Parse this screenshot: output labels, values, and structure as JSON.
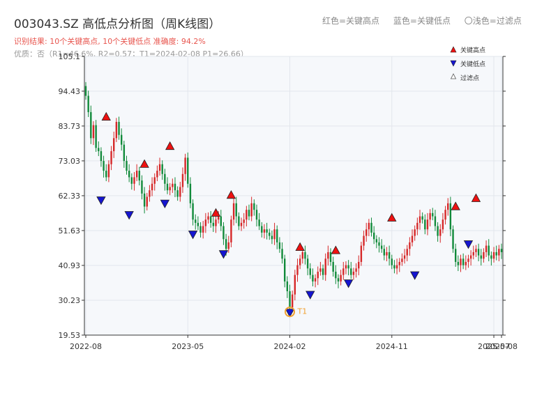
{
  "header": {
    "title": "003043.SZ 高低点分析图（周K线图）",
    "legend_red": "红色=关键高点",
    "legend_blue": "蓝色=关键低点",
    "legend_filtered": "〇浅色=过滤点",
    "summary": "识别结果: 10个关键高点, 10个关键低点  准确度: 94.2%",
    "quality": "优质：否（R1=46.6%, R2=0.57；T1=2024-02-08 P1=26.66）"
  },
  "colors": {
    "up": "#d62728",
    "down": "#118a3a",
    "high_marker": "#ee1111",
    "low_marker": "#1515d0",
    "t1": "#f0a030",
    "grid": "#e2e6ec",
    "plot_bg": "#f6f8fb"
  },
  "chart_data": {
    "type": "candlestick",
    "y_ticks": [
      19.53,
      30.23,
      40.93,
      51.63,
      62.33,
      73.03,
      83.73,
      94.43,
      105.1
    ],
    "ylim": [
      19.53,
      105.1
    ],
    "x_ticks": [
      {
        "label": "2022-08",
        "week": 0
      },
      {
        "label": "2023-05",
        "week": 40
      },
      {
        "label": "2024-02",
        "week": 80
      },
      {
        "label": "2024-11",
        "week": 120
      },
      {
        "label": "2025-07",
        "week": 160
      },
      {
        "label": "2025-08",
        "week": 163
      }
    ],
    "weeks_total": 164,
    "closes": [
      93,
      88,
      80,
      84,
      77,
      76,
      73,
      70,
      68,
      72,
      76,
      80,
      85,
      81,
      78,
      73,
      70,
      68,
      66,
      68,
      70,
      67,
      63,
      59,
      62,
      64,
      66,
      68,
      70,
      72,
      69,
      66,
      64,
      65,
      66,
      64,
      62,
      65,
      69,
      74,
      66,
      60,
      55,
      54,
      53,
      51,
      53,
      55,
      56,
      54,
      53,
      55,
      56,
      53,
      49,
      46,
      48,
      55,
      60,
      56,
      53,
      54,
      55,
      58,
      56,
      60,
      58,
      55,
      53,
      51,
      52,
      51,
      50,
      49,
      52,
      48,
      46,
      43,
      36,
      33,
      28,
      32,
      38,
      41,
      43,
      45,
      43,
      40,
      38,
      36,
      37,
      39,
      40,
      38,
      43,
      45,
      42,
      39,
      37,
      36,
      38,
      40,
      41,
      40,
      38,
      39,
      40,
      42,
      47,
      50,
      52,
      54,
      51,
      49,
      48,
      47,
      46,
      44,
      45,
      43,
      41,
      40,
      41,
      42,
      43,
      44,
      46,
      48,
      50,
      52,
      54,
      56,
      55,
      52,
      55,
      57,
      56,
      53,
      50,
      52,
      55,
      58,
      60,
      52,
      46,
      42,
      41,
      43,
      41,
      42,
      43,
      44,
      45,
      46,
      44,
      43,
      45,
      47,
      44,
      43,
      45,
      44,
      46,
      45
    ],
    "key_highs": [
      {
        "week": 8,
        "price": 85.5
      },
      {
        "week": 23,
        "price": 71.0
      },
      {
        "week": 33,
        "price": 76.5
      },
      {
        "week": 51,
        "price": 56.0
      },
      {
        "week": 57,
        "price": 61.5
      },
      {
        "week": 84,
        "price": 45.5
      },
      {
        "week": 98,
        "price": 44.5
      },
      {
        "week": 120,
        "price": 54.5
      },
      {
        "week": 145,
        "price": 58.0
      },
      {
        "week": 153,
        "price": 60.5
      }
    ],
    "key_lows": [
      {
        "week": 6,
        "price": 62.0
      },
      {
        "week": 17,
        "price": 57.5
      },
      {
        "week": 31,
        "price": 61.0
      },
      {
        "week": 42,
        "price": 51.5
      },
      {
        "week": 54,
        "price": 45.5
      },
      {
        "week": 80,
        "price": 27.5
      },
      {
        "week": 88,
        "price": 33.0
      },
      {
        "week": 103,
        "price": 36.5
      },
      {
        "week": 129,
        "price": 39.0
      },
      {
        "week": 150,
        "price": 48.5
      }
    ],
    "t1": {
      "label": "T1",
      "week": 80,
      "price": 26.66
    },
    "legend": [
      "关键高点",
      "关键低点",
      "过滤点"
    ]
  }
}
